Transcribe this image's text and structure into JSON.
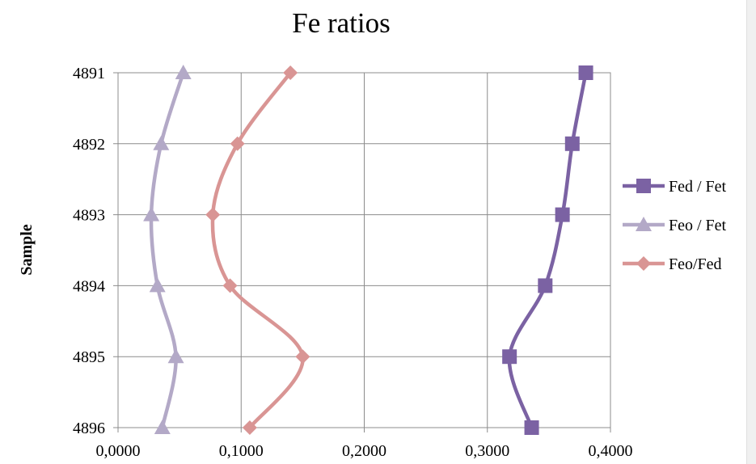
{
  "chart_data": {
    "type": "line",
    "title": "Fe ratios",
    "ylabel": "Sample",
    "xlabel": "",
    "x_ticks": [
      "0,0000",
      "0,1000",
      "0,2000",
      "0,3000",
      "0,4000"
    ],
    "xlim": [
      0,
      0.4
    ],
    "y_categories": [
      "4891",
      "4892",
      "4893",
      "4894",
      "4895",
      "4896"
    ],
    "grid": true,
    "legend_position": "right",
    "series": [
      {
        "name": "Fed / Fet",
        "color": "#7b62a3",
        "marker": "square",
        "values": [
          0.38,
          0.369,
          0.361,
          0.347,
          0.318,
          0.336
        ]
      },
      {
        "name": "Feo / Fet",
        "color": "#b3a9c7",
        "marker": "triangle",
        "values": [
          0.053,
          0.035,
          0.027,
          0.032,
          0.047,
          0.036
        ]
      },
      {
        "name": "Feo/Fed",
        "color": "#d99594",
        "marker": "diamond",
        "values": [
          0.14,
          0.097,
          0.077,
          0.091,
          0.15,
          0.107
        ]
      }
    ]
  }
}
